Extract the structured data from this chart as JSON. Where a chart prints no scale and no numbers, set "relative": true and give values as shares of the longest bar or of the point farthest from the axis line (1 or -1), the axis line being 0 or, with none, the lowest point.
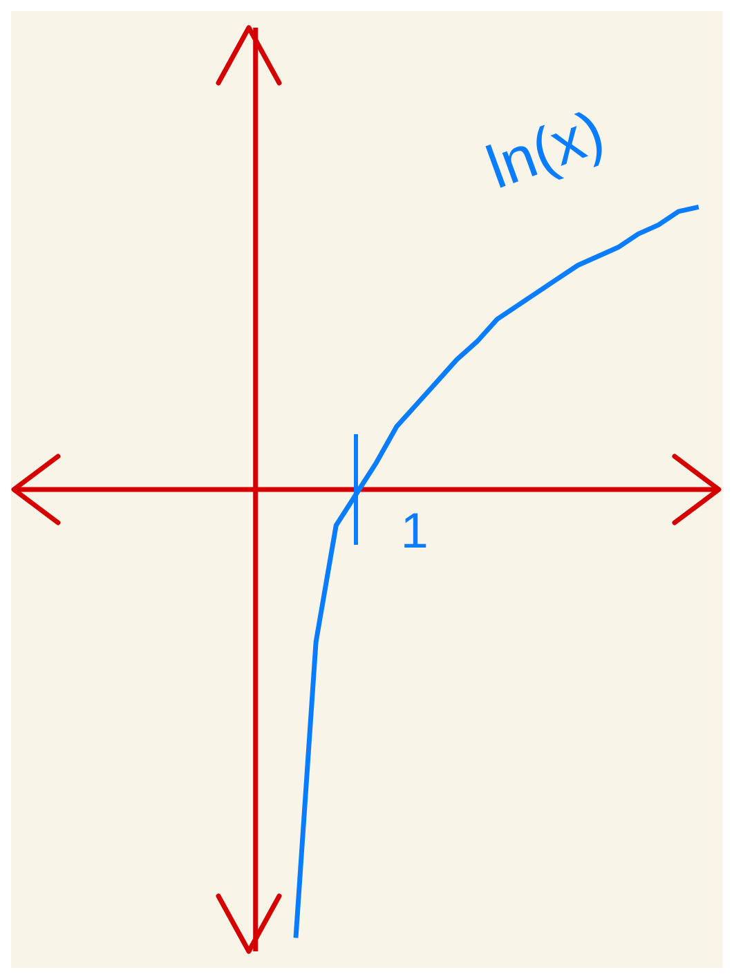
{
  "chart_data": {
    "type": "line",
    "relative": true,
    "annotations": [
      "1"
    ],
    "categories": [
      null,
      null,
      null,
      null,
      null,
      null,
      null,
      null,
      null,
      null,
      null,
      null,
      null,
      null,
      null,
      null,
      null,
      null,
      null,
      null,
      null,
      null,
      null,
      null,
      null,
      null,
      null,
      null,
      null,
      null,
      null,
      null,
      null,
      null,
      null,
      null
    ],
    "series": [
      {
        "name": "ln(x)",
        "color": "#0a7cff",
        "values": [
          null,
          null,
          null,
          null,
          null,
          null,
          null,
          null,
          null,
          null,
          null,
          null,
          null,
          null,
          -1.0,
          -0.34,
          -0.08,
          -0.01,
          0.06,
          0.14,
          0.19,
          0.24,
          0.29,
          0.33,
          0.38,
          0.41,
          0.44,
          0.47,
          0.5,
          0.52,
          0.54,
          0.57,
          0.59,
          0.62,
          0.63,
          null
        ]
      }
    ],
    "ref_lines": [
      {
        "axis": "y",
        "value": 0,
        "color": "#d40000"
      }
    ],
    "grid": false,
    "legend": false,
    "marker": "none",
    "line_style": "solid"
  }
}
